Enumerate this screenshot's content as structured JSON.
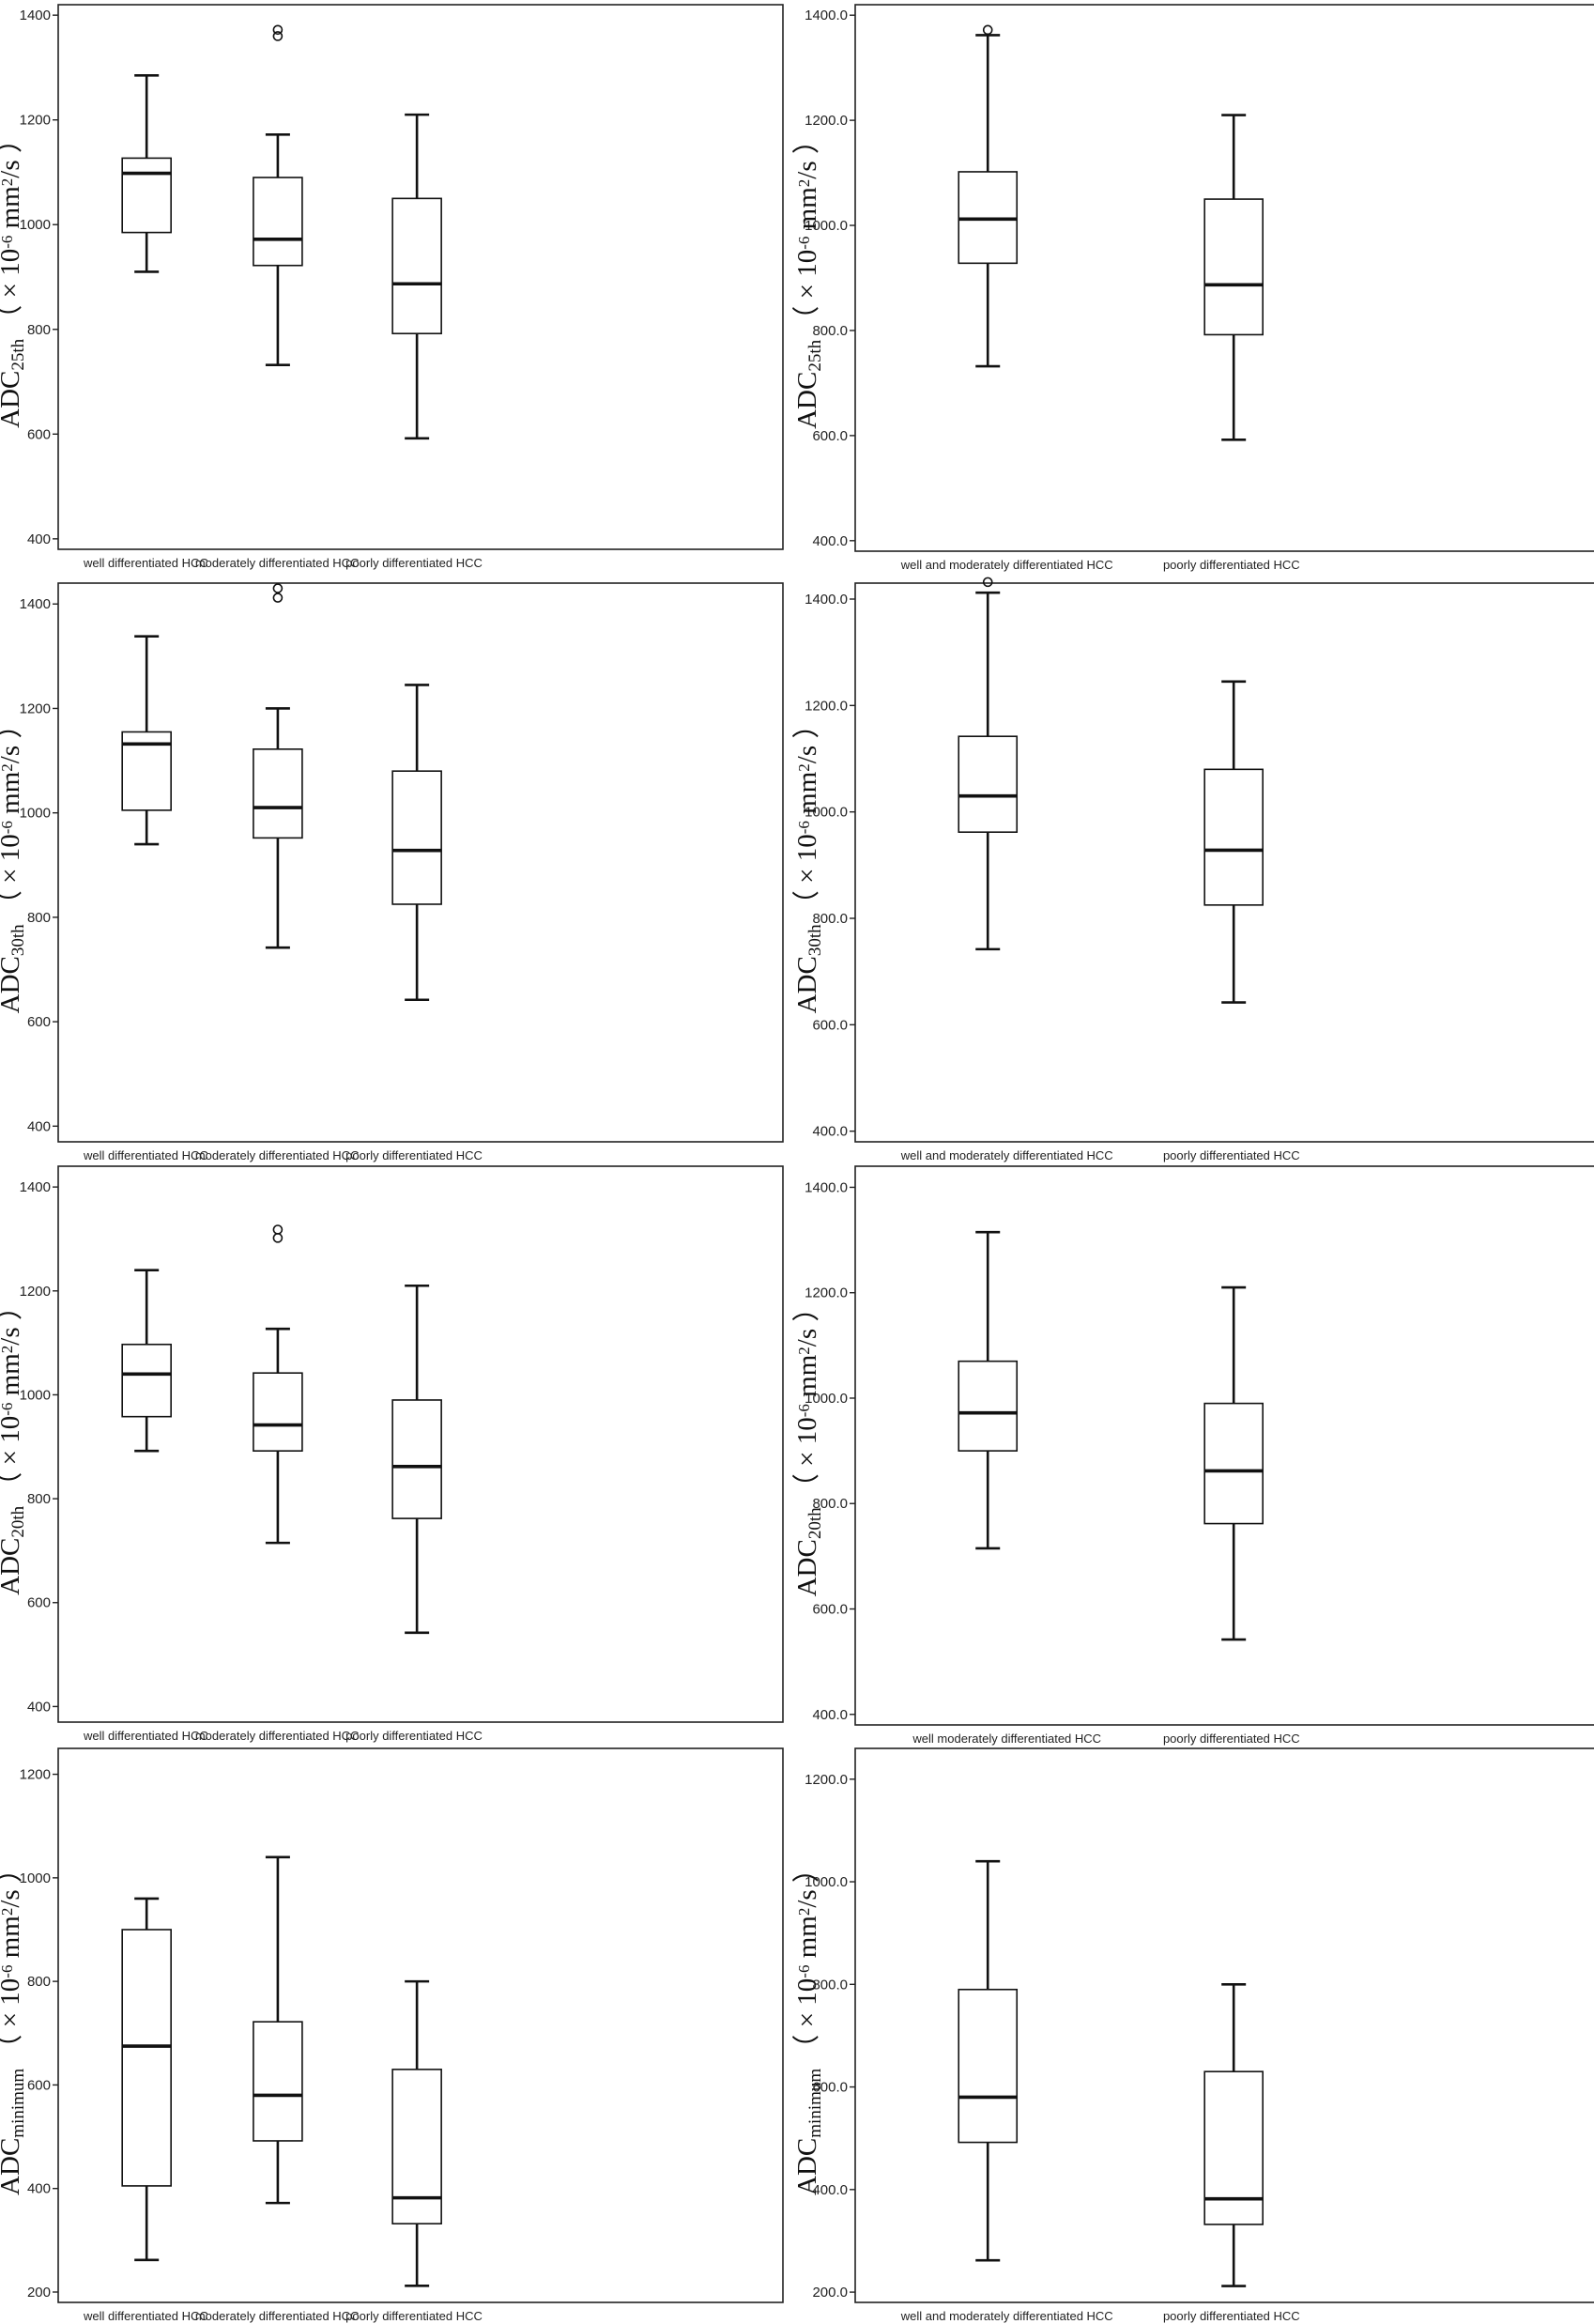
{
  "chart_data": [
    {
      "type": "box",
      "ylabel": {
        "main": "ADC",
        "sub": "25th",
        "unit_pre": "（ × 10",
        "exp": "-6",
        "unit_mid": " mm",
        "sq": "2",
        "unit_post": "/s  ）"
      },
      "ylim": [
        380,
        1420
      ],
      "yticks": [
        400,
        600,
        800,
        1000,
        1200,
        1400
      ],
      "tick_decimals": 0,
      "categories": [
        "well differentiated HCC",
        "moderately differentiated HCC",
        "poorly differentiated HCC"
      ],
      "boxes": [
        {
          "min": 910,
          "q1": 985,
          "median": 1098,
          "q3": 1127,
          "max": 1285,
          "outliers": []
        },
        {
          "min": 732,
          "q1": 922,
          "median": 972,
          "q3": 1090,
          "max": 1172,
          "outliers": [
            1360,
            1372
          ]
        },
        {
          "min": 592,
          "q1": 792,
          "median": 887,
          "q3": 1050,
          "max": 1210,
          "outliers": []
        }
      ]
    },
    {
      "type": "box",
      "ylabel": {
        "main": "ADC",
        "sub": "25th",
        "unit_pre": "（ × 10",
        "exp": "-6",
        "unit_mid": " mm",
        "sq": "2",
        "unit_post": "/s  ）"
      },
      "ylim": [
        380,
        1420
      ],
      "yticks": [
        400,
        600,
        800,
        1000,
        1200,
        1400
      ],
      "tick_decimals": 1,
      "categories": [
        "well and moderately differentiated HCC",
        "poorly differentiated HCC"
      ],
      "boxes": [
        {
          "min": 732,
          "q1": 928,
          "median": 1012,
          "q3": 1102,
          "max": 1362,
          "outliers": [
            1372
          ]
        },
        {
          "min": 592,
          "q1": 792,
          "median": 887,
          "q3": 1050,
          "max": 1210,
          "outliers": []
        }
      ]
    },
    {
      "type": "box",
      "ylabel": {
        "main": "ADC",
        "sub": "30th",
        "unit_pre": "（ × 10",
        "exp": "-6",
        "unit_mid": " mm",
        "sq": "2",
        "unit_post": "/s  ）"
      },
      "ylim": [
        370,
        1440
      ],
      "yticks": [
        400,
        600,
        800,
        1000,
        1200,
        1400
      ],
      "tick_decimals": 0,
      "categories": [
        "well differentiated HCC",
        "moderately differentiated HCC",
        "poorly differentiated HCC"
      ],
      "boxes": [
        {
          "min": 940,
          "q1": 1005,
          "median": 1132,
          "q3": 1155,
          "max": 1338,
          "outliers": []
        },
        {
          "min": 742,
          "q1": 952,
          "median": 1010,
          "q3": 1122,
          "max": 1200,
          "outliers": [
            1412,
            1430
          ]
        },
        {
          "min": 642,
          "q1": 825,
          "median": 928,
          "q3": 1080,
          "max": 1245,
          "outliers": []
        }
      ]
    },
    {
      "type": "box",
      "ylabel": {
        "main": "ADC",
        "sub": "30th",
        "unit_pre": "（ × 10",
        "exp": "-6",
        "unit_mid": " mm",
        "sq": "2",
        "unit_post": "/s  ）"
      },
      "ylim": [
        380,
        1430
      ],
      "yticks": [
        400,
        600,
        800,
        1000,
        1200,
        1400
      ],
      "tick_decimals": 1,
      "categories": [
        "well and moderately differentiated HCC",
        "poorly differentiated HCC"
      ],
      "boxes": [
        {
          "min": 742,
          "q1": 962,
          "median": 1030,
          "q3": 1142,
          "max": 1412,
          "outliers": [
            1432
          ]
        },
        {
          "min": 642,
          "q1": 825,
          "median": 928,
          "q3": 1080,
          "max": 1245,
          "outliers": []
        }
      ]
    },
    {
      "type": "box",
      "ylabel": {
        "main": "ADC",
        "sub": "20th",
        "unit_pre": "（ × 10",
        "exp": "-6",
        "unit_mid": " mm",
        "sq": "2",
        "unit_post": "/s  ）"
      },
      "ylim": [
        370,
        1440
      ],
      "yticks": [
        400,
        600,
        800,
        1000,
        1200,
        1400
      ],
      "tick_decimals": 0,
      "categories": [
        "well differentiated HCC",
        "moderately differentiated HCC",
        "poorly differentiated HCC"
      ],
      "boxes": [
        {
          "min": 892,
          "q1": 958,
          "median": 1040,
          "q3": 1097,
          "max": 1240,
          "outliers": []
        },
        {
          "min": 715,
          "q1": 892,
          "median": 942,
          "q3": 1042,
          "max": 1127,
          "outliers": [
            1302,
            1318
          ]
        },
        {
          "min": 542,
          "q1": 762,
          "median": 862,
          "q3": 990,
          "max": 1210,
          "outliers": []
        }
      ]
    },
    {
      "type": "box",
      "ylabel": {
        "main": "ADC",
        "sub": "20th",
        "unit_pre": "（ × 10",
        "exp": "-6",
        "unit_mid": " mm",
        "sq": "2",
        "unit_post": "/s  ）"
      },
      "ylim": [
        380,
        1440
      ],
      "yticks": [
        400,
        600,
        800,
        1000,
        1200,
        1400
      ],
      "tick_decimals": 1,
      "categories": [
        "well moderately differentiated HCC",
        "poorly differentiated HCC"
      ],
      "boxes": [
        {
          "min": 715,
          "q1": 900,
          "median": 972,
          "q3": 1070,
          "max": 1315,
          "outliers": []
        },
        {
          "min": 542,
          "q1": 762,
          "median": 862,
          "q3": 990,
          "max": 1210,
          "outliers": []
        }
      ]
    },
    {
      "type": "box",
      "ylabel": {
        "main": "ADC",
        "sub": "minimum",
        "unit_pre": "（ × 10",
        "exp": "-6",
        "unit_mid": " mm",
        "sq": "2",
        "unit_post": "/s  ）"
      },
      "ylim": [
        180,
        1250
      ],
      "yticks": [
        200,
        400,
        600,
        800,
        1000,
        1200
      ],
      "tick_decimals": 0,
      "categories": [
        "well differentiated HCC",
        "moderately differentiated HCC",
        "poorly differentiated HCC"
      ],
      "boxes": [
        {
          "min": 262,
          "q1": 405,
          "median": 675,
          "q3": 900,
          "max": 960,
          "outliers": []
        },
        {
          "min": 372,
          "q1": 492,
          "median": 580,
          "q3": 722,
          "max": 1040,
          "outliers": []
        },
        {
          "min": 212,
          "q1": 332,
          "median": 382,
          "q3": 630,
          "max": 800,
          "outliers": []
        }
      ]
    },
    {
      "type": "box",
      "ylabel": {
        "main": "ADC",
        "sub": "minimum",
        "unit_pre": "（ × 10",
        "exp": "-6",
        "unit_mid": " mm",
        "sq": "2",
        "unit_post": "/s  ）"
      },
      "ylim": [
        180,
        1260
      ],
      "yticks": [
        200,
        400,
        600,
        800,
        1000,
        1200
      ],
      "tick_decimals": 1,
      "categories": [
        "well and moderately differentiated HCC",
        "poorly differentiated HCC"
      ],
      "boxes": [
        {
          "min": 262,
          "q1": 492,
          "median": 580,
          "q3": 790,
          "max": 1040,
          "outliers": []
        },
        {
          "min": 212,
          "q1": 332,
          "median": 382,
          "q3": 630,
          "max": 800,
          "outliers": []
        }
      ]
    }
  ]
}
